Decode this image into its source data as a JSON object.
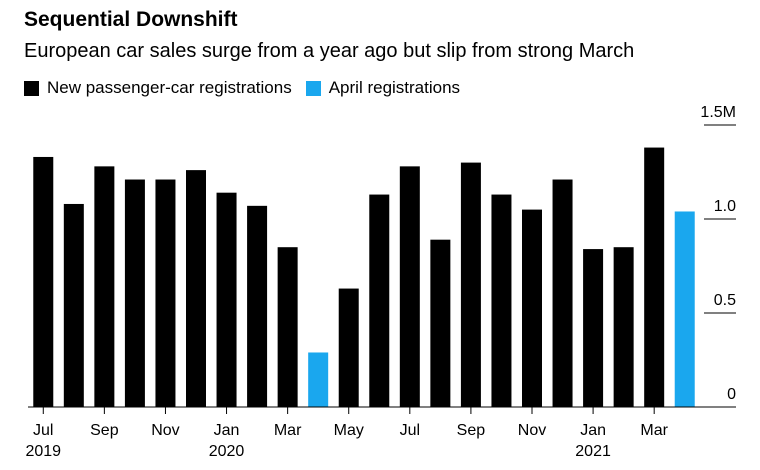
{
  "header": {
    "title": "Sequential Downshift",
    "subtitle": "European car sales surge from a year ago but slip from strong March"
  },
  "legend": [
    {
      "label": "New passenger-car registrations",
      "color": "#000000"
    },
    {
      "label": "April registrations",
      "color": "#1aa7ee"
    }
  ],
  "chart_data": {
    "type": "bar",
    "title": "Sequential Downshift",
    "subtitle": "European car sales surge from a year ago but slip from strong March",
    "categories": [
      "Jul 2019",
      "Aug 2019",
      "Sep 2019",
      "Oct 2019",
      "Nov 2019",
      "Dec 2019",
      "Jan 2020",
      "Feb 2020",
      "Mar 2020",
      "Apr 2020",
      "May 2020",
      "Jun 2020",
      "Jul 2020",
      "Aug 2020",
      "Sep 2020",
      "Oct 2020",
      "Nov 2020",
      "Dec 2020",
      "Jan 2021",
      "Feb 2021",
      "Mar 2021",
      "Apr 2021"
    ],
    "values": [
      1.33,
      1.08,
      1.28,
      1.21,
      1.21,
      1.26,
      1.14,
      1.07,
      0.85,
      0.29,
      0.63,
      1.13,
      1.28,
      0.89,
      1.3,
      1.13,
      1.05,
      1.21,
      0.84,
      0.85,
      1.38,
      1.04
    ],
    "highlight_categories": [
      "Apr 2020",
      "Apr 2021"
    ],
    "ylim": [
      0,
      1.5
    ],
    "yticks": [
      0,
      0.5,
      1.0,
      1.5
    ],
    "ytick_labels": [
      "0",
      "0.5",
      "1.0",
      "1.5M"
    ],
    "xtick_labels": [
      {
        "category": "Jul 2019",
        "month": "Jul",
        "year": "2019"
      },
      {
        "category": "Sep 2019",
        "month": "Sep",
        "year": ""
      },
      {
        "category": "Nov 2019",
        "month": "Nov",
        "year": ""
      },
      {
        "category": "Jan 2020",
        "month": "Jan",
        "year": "2020"
      },
      {
        "category": "Mar 2020",
        "month": "Mar",
        "year": ""
      },
      {
        "category": "May 2020",
        "month": "May",
        "year": ""
      },
      {
        "category": "Jul 2020",
        "month": "Jul",
        "year": ""
      },
      {
        "category": "Sep 2020",
        "month": "Sep",
        "year": ""
      },
      {
        "category": "Nov 2020",
        "month": "Nov",
        "year": ""
      },
      {
        "category": "Jan 2021",
        "month": "Jan",
        "year": "2021"
      },
      {
        "category": "Mar 2021",
        "month": "Mar",
        "year": ""
      }
    ],
    "xlabel": "",
    "ylabel": "",
    "grid": false,
    "legend_position": "top-left",
    "colors": {
      "default": "#000000",
      "highlight": "#1aa7ee"
    }
  }
}
